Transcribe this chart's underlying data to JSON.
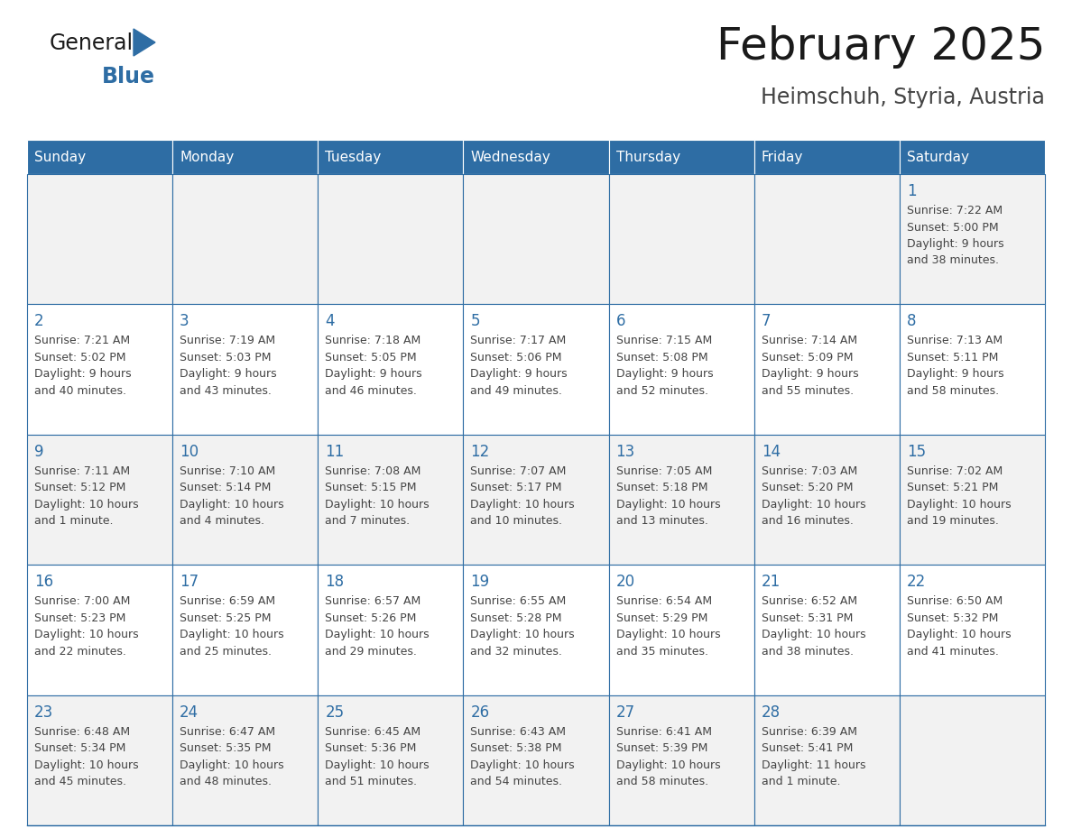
{
  "title": "February 2025",
  "subtitle": "Heimschuh, Styria, Austria",
  "days_of_week": [
    "Sunday",
    "Monday",
    "Tuesday",
    "Wednesday",
    "Thursday",
    "Friday",
    "Saturday"
  ],
  "header_bg": "#2E6DA4",
  "header_text": "#FFFFFF",
  "cell_bg_odd": "#F2F2F2",
  "cell_bg_even": "#FFFFFF",
  "cell_border": "#2E6DA4",
  "day_number_color": "#2E6DA4",
  "text_color": "#444444",
  "title_color": "#1a1a1a",
  "subtitle_color": "#444444",
  "logo_general_color": "#1a1a1a",
  "logo_blue_color": "#2E6DA4",
  "calendar_data": {
    "1": {
      "sunrise": "7:22 AM",
      "sunset": "5:00 PM",
      "daylight_line1": "Daylight: 9 hours",
      "daylight_line2": "and 38 minutes."
    },
    "2": {
      "sunrise": "7:21 AM",
      "sunset": "5:02 PM",
      "daylight_line1": "Daylight: 9 hours",
      "daylight_line2": "and 40 minutes."
    },
    "3": {
      "sunrise": "7:19 AM",
      "sunset": "5:03 PM",
      "daylight_line1": "Daylight: 9 hours",
      "daylight_line2": "and 43 minutes."
    },
    "4": {
      "sunrise": "7:18 AM",
      "sunset": "5:05 PM",
      "daylight_line1": "Daylight: 9 hours",
      "daylight_line2": "and 46 minutes."
    },
    "5": {
      "sunrise": "7:17 AM",
      "sunset": "5:06 PM",
      "daylight_line1": "Daylight: 9 hours",
      "daylight_line2": "and 49 minutes."
    },
    "6": {
      "sunrise": "7:15 AM",
      "sunset": "5:08 PM",
      "daylight_line1": "Daylight: 9 hours",
      "daylight_line2": "and 52 minutes."
    },
    "7": {
      "sunrise": "7:14 AM",
      "sunset": "5:09 PM",
      "daylight_line1": "Daylight: 9 hours",
      "daylight_line2": "and 55 minutes."
    },
    "8": {
      "sunrise": "7:13 AM",
      "sunset": "5:11 PM",
      "daylight_line1": "Daylight: 9 hours",
      "daylight_line2": "and 58 minutes."
    },
    "9": {
      "sunrise": "7:11 AM",
      "sunset": "5:12 PM",
      "daylight_line1": "Daylight: 10 hours",
      "daylight_line2": "and 1 minute."
    },
    "10": {
      "sunrise": "7:10 AM",
      "sunset": "5:14 PM",
      "daylight_line1": "Daylight: 10 hours",
      "daylight_line2": "and 4 minutes."
    },
    "11": {
      "sunrise": "7:08 AM",
      "sunset": "5:15 PM",
      "daylight_line1": "Daylight: 10 hours",
      "daylight_line2": "and 7 minutes."
    },
    "12": {
      "sunrise": "7:07 AM",
      "sunset": "5:17 PM",
      "daylight_line1": "Daylight: 10 hours",
      "daylight_line2": "and 10 minutes."
    },
    "13": {
      "sunrise": "7:05 AM",
      "sunset": "5:18 PM",
      "daylight_line1": "Daylight: 10 hours",
      "daylight_line2": "and 13 minutes."
    },
    "14": {
      "sunrise": "7:03 AM",
      "sunset": "5:20 PM",
      "daylight_line1": "Daylight: 10 hours",
      "daylight_line2": "and 16 minutes."
    },
    "15": {
      "sunrise": "7:02 AM",
      "sunset": "5:21 PM",
      "daylight_line1": "Daylight: 10 hours",
      "daylight_line2": "and 19 minutes."
    },
    "16": {
      "sunrise": "7:00 AM",
      "sunset": "5:23 PM",
      "daylight_line1": "Daylight: 10 hours",
      "daylight_line2": "and 22 minutes."
    },
    "17": {
      "sunrise": "6:59 AM",
      "sunset": "5:25 PM",
      "daylight_line1": "Daylight: 10 hours",
      "daylight_line2": "and 25 minutes."
    },
    "18": {
      "sunrise": "6:57 AM",
      "sunset": "5:26 PM",
      "daylight_line1": "Daylight: 10 hours",
      "daylight_line2": "and 29 minutes."
    },
    "19": {
      "sunrise": "6:55 AM",
      "sunset": "5:28 PM",
      "daylight_line1": "Daylight: 10 hours",
      "daylight_line2": "and 32 minutes."
    },
    "20": {
      "sunrise": "6:54 AM",
      "sunset": "5:29 PM",
      "daylight_line1": "Daylight: 10 hours",
      "daylight_line2": "and 35 minutes."
    },
    "21": {
      "sunrise": "6:52 AM",
      "sunset": "5:31 PM",
      "daylight_line1": "Daylight: 10 hours",
      "daylight_line2": "and 38 minutes."
    },
    "22": {
      "sunrise": "6:50 AM",
      "sunset": "5:32 PM",
      "daylight_line1": "Daylight: 10 hours",
      "daylight_line2": "and 41 minutes."
    },
    "23": {
      "sunrise": "6:48 AM",
      "sunset": "5:34 PM",
      "daylight_line1": "Daylight: 10 hours",
      "daylight_line2": "and 45 minutes."
    },
    "24": {
      "sunrise": "6:47 AM",
      "sunset": "5:35 PM",
      "daylight_line1": "Daylight: 10 hours",
      "daylight_line2": "and 48 minutes."
    },
    "25": {
      "sunrise": "6:45 AM",
      "sunset": "5:36 PM",
      "daylight_line1": "Daylight: 10 hours",
      "daylight_line2": "and 51 minutes."
    },
    "26": {
      "sunrise": "6:43 AM",
      "sunset": "5:38 PM",
      "daylight_line1": "Daylight: 10 hours",
      "daylight_line2": "and 54 minutes."
    },
    "27": {
      "sunrise": "6:41 AM",
      "sunset": "5:39 PM",
      "daylight_line1": "Daylight: 10 hours",
      "daylight_line2": "and 58 minutes."
    },
    "28": {
      "sunrise": "6:39 AM",
      "sunset": "5:41 PM",
      "daylight_line1": "Daylight: 11 hours",
      "daylight_line2": "and 1 minute."
    }
  },
  "week_layout": [
    [
      null,
      null,
      null,
      null,
      null,
      null,
      1
    ],
    [
      2,
      3,
      4,
      5,
      6,
      7,
      8
    ],
    [
      9,
      10,
      11,
      12,
      13,
      14,
      15
    ],
    [
      16,
      17,
      18,
      19,
      20,
      21,
      22
    ],
    [
      23,
      24,
      25,
      26,
      27,
      28,
      null
    ]
  ]
}
